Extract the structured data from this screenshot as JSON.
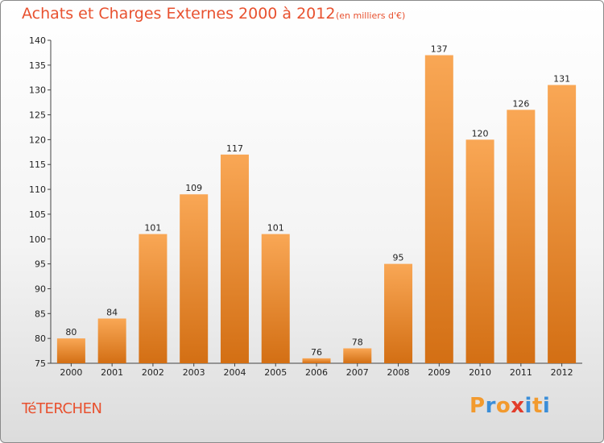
{
  "title": "Achats et Charges Externes 2000 à 2012",
  "unit": "(en milliers d'€)",
  "commune": "TéTERCHEN",
  "logo": {
    "letters": [
      "P",
      "r",
      "o",
      "x",
      "i",
      "t",
      "i"
    ],
    "colors": [
      "#f29a2e",
      "#3b8ed8",
      "#f29a2e",
      "#e23c2b",
      "#3b8ed8",
      "#f29a2e",
      "#3b8ed8"
    ]
  },
  "colors": {
    "bar_light": "#f9a755",
    "bar_dark": "#d36f14",
    "text_accent": "#e8512f"
  },
  "chart_data": {
    "type": "bar",
    "title": "Achats et Charges Externes 2000 à 2012",
    "categories": [
      "2000",
      "2001",
      "2002",
      "2003",
      "2004",
      "2005",
      "2006",
      "2007",
      "2008",
      "2009",
      "2010",
      "2011",
      "2012"
    ],
    "values": [
      80,
      84,
      101,
      109,
      117,
      101,
      76,
      78,
      95,
      137,
      120,
      126,
      131
    ],
    "ylim": [
      75,
      140
    ],
    "yticks": [
      75,
      80,
      85,
      90,
      95,
      100,
      105,
      110,
      115,
      120,
      125,
      130,
      135,
      140
    ],
    "xlabel": "",
    "ylabel": "",
    "grid": false
  }
}
